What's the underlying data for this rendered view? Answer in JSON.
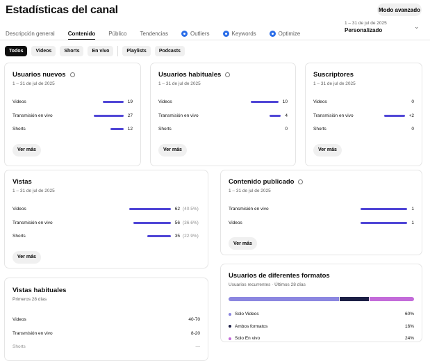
{
  "header": {
    "title": "Estadísticas del canal",
    "advanced_button": "Modo avanzado",
    "date_range": "1 – 31 de jul de 2025",
    "period": "Personalizado"
  },
  "tabs": [
    {
      "label": "Descripción general"
    },
    {
      "label": "Contenido",
      "active": true
    },
    {
      "label": "Público"
    },
    {
      "label": "Tendencias"
    },
    {
      "label": "Outliers",
      "icon": "extension-icon"
    },
    {
      "label": "Keywords",
      "icon": "extension-icon"
    },
    {
      "label": "Optimize",
      "icon": "extension-icon"
    }
  ],
  "chips": [
    "Todos",
    "Videos",
    "Shorts",
    "En vivo",
    "Playlists",
    "Podcasts"
  ],
  "colors": {
    "bar": "#5046d6",
    "solo_videos": "#8b86e0",
    "ambos": "#1c1f45",
    "solo_en_vivo": "#c36bd9"
  },
  "cards": {
    "nuevos": {
      "title": "Usuarios nuevos",
      "subtitle": "1 – 31 de jul de 2025",
      "more": "Ver más",
      "rows": [
        {
          "label": "Videos",
          "value": 19,
          "text": "19"
        },
        {
          "label": "Transmisión en vivo",
          "value": 27,
          "text": "27"
        },
        {
          "label": "Shorts",
          "value": 12,
          "text": "12"
        }
      ]
    },
    "habituales": {
      "title": "Usuarios habituales",
      "subtitle": "1 – 31 de jul de 2025",
      "more": "Ver más",
      "rows": [
        {
          "label": "Videos",
          "value": 10,
          "text": "10"
        },
        {
          "label": "Transmisión en vivo",
          "value": 4,
          "text": "4"
        },
        {
          "label": "Shorts",
          "value": 0,
          "text": "0"
        }
      ]
    },
    "suscriptores": {
      "title": "Suscriptores",
      "subtitle": "1 – 31 de jul de 2025",
      "more": "Ver más",
      "rows": [
        {
          "label": "Videos",
          "value": 0,
          "text": "0"
        },
        {
          "label": "Transmisión en vivo",
          "value": 2,
          "text": "+2"
        },
        {
          "label": "Shorts",
          "value": 0,
          "text": "0"
        }
      ]
    },
    "vistas": {
      "title": "Vistas",
      "subtitle": "1 – 31 de jul de 2025",
      "more": "Ver más",
      "rows": [
        {
          "label": "Videos",
          "value": 62,
          "text": "62",
          "pct": "(40.5%)"
        },
        {
          "label": "Transmisión en vivo",
          "value": 56,
          "text": "56",
          "pct": "(36.6%)"
        },
        {
          "label": "Shorts",
          "value": 35,
          "text": "35",
          "pct": "(22.9%)"
        }
      ]
    },
    "publicado": {
      "title": "Contenido publicado",
      "subtitle": "1 – 31 de jul de 2025",
      "more": "Ver más",
      "rows": [
        {
          "label": "Transmisión en vivo",
          "value": 1,
          "text": "1"
        },
        {
          "label": "Videos",
          "value": 1,
          "text": "1"
        }
      ]
    },
    "vistas_habituales": {
      "title": "Vistas habituales",
      "subtitle": "Primeros 28 días",
      "rows": [
        {
          "label": "Videos",
          "text": "40-70"
        },
        {
          "label": "Transmisión en vivo",
          "text": "8-20"
        },
        {
          "label": "Shorts",
          "text": "—"
        }
      ]
    },
    "formatos": {
      "title": "Usuarios de diferentes formatos",
      "subtitle": "Usuarios recurrentes · Últimos 28 días",
      "segments": [
        {
          "label": "Solo Videos",
          "value": 60,
          "text": "60%",
          "color": "#8b86e0"
        },
        {
          "label": "Ambos formatos",
          "value": 16,
          "text": "16%",
          "color": "#1c1f45"
        },
        {
          "label": "Solo En vivo",
          "value": 24,
          "text": "24%",
          "color": "#c36bd9"
        }
      ]
    }
  }
}
